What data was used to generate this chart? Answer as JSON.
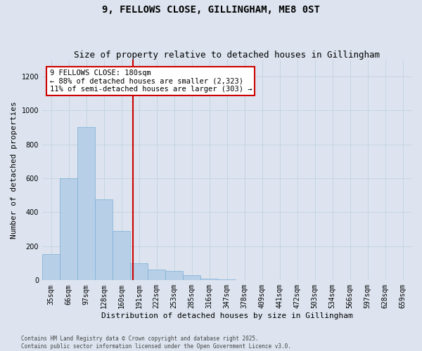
{
  "title_line1": "9, FELLOWS CLOSE, GILLINGHAM, ME8 0ST",
  "title_line2": "Size of property relative to detached houses in Gillingham",
  "xlabel": "Distribution of detached houses by size in Gillingham",
  "ylabel": "Number of detached properties",
  "categories": [
    "35sqm",
    "66sqm",
    "97sqm",
    "128sqm",
    "160sqm",
    "191sqm",
    "222sqm",
    "253sqm",
    "285sqm",
    "316sqm",
    "347sqm",
    "378sqm",
    "409sqm",
    "441sqm",
    "472sqm",
    "503sqm",
    "534sqm",
    "566sqm",
    "597sqm",
    "628sqm",
    "659sqm"
  ],
  "values": [
    155,
    600,
    900,
    475,
    290,
    100,
    65,
    55,
    30,
    10,
    5,
    0,
    0,
    0,
    0,
    0,
    0,
    0,
    0,
    0,
    0
  ],
  "bar_color": "#b8cfe8",
  "bar_edge_color": "#7aafd4",
  "grid_color": "#c8d4e4",
  "background_color": "#dde4ef",
  "vline_color": "#cc0000",
  "vline_pos": 4.65,
  "annotation_text_line1": "9 FELLOWS CLOSE: 180sqm",
  "annotation_text_line2": "← 88% of detached houses are smaller (2,323)",
  "annotation_text_line3": "11% of semi-detached houses are larger (303) →",
  "annotation_box_color": "#cc0000",
  "annotation_bg": "#ffffff",
  "annotation_fontsize": 7.5,
  "title_fontsize1": 10,
  "title_fontsize2": 9,
  "footer_line1": "Contains HM Land Registry data © Crown copyright and database right 2025.",
  "footer_line2": "Contains public sector information licensed under the Open Government Licence v3.0.",
  "ylim": [
    0,
    1300
  ],
  "yticks": [
    0,
    200,
    400,
    600,
    800,
    1000,
    1200
  ],
  "ylabel_fontsize": 8,
  "xlabel_fontsize": 8,
  "tick_fontsize": 7
}
